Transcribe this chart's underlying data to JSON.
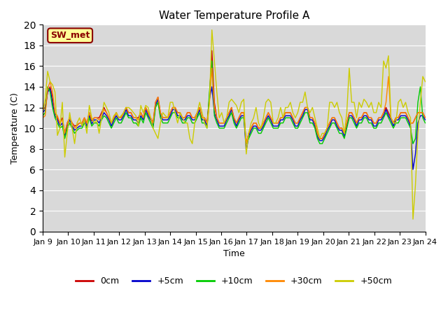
{
  "title": "Water Temperature Profile A",
  "xlabel": "Time",
  "ylabel": "Temperature (C)",
  "ylim": [
    0,
    20
  ],
  "bg_color": "#e0e0e0",
  "annotation_text": "SW_met",
  "annotation_fg": "#8b0000",
  "annotation_bg": "#ffff99",
  "legend_labels": [
    "0cm",
    "+5cm",
    "+10cm",
    "+30cm",
    "+50cm"
  ],
  "legend_colors": [
    "#cc0000",
    "#0000cc",
    "#00cc00",
    "#ff8800",
    "#cccc00"
  ],
  "x_tick_labels": [
    "Jan 9",
    "Jan 10",
    "Jan 11",
    "Jan 12",
    "Jan 13",
    "Jan 14",
    "Jan 15",
    "Jan 16",
    "Jan 17",
    "Jan 18",
    "Jan 19",
    "Jan 20",
    "Jan 21",
    "Jan 22",
    "Jan 23",
    "Jan 24"
  ],
  "series": {
    "0cm": [
      11.8,
      12.0,
      13.5,
      14.0,
      13.0,
      11.5,
      11.0,
      10.5,
      11.0,
      9.5,
      10.5,
      11.0,
      10.5,
      10.2,
      10.3,
      10.5,
      10.5,
      11.0,
      10.5,
      11.5,
      10.7,
      11.0,
      11.0,
      11.0,
      11.5,
      12.0,
      11.5,
      11.0,
      10.5,
      11.0,
      11.5,
      11.0,
      11.0,
      11.5,
      12.0,
      11.5,
      11.5,
      11.0,
      11.0,
      11.0,
      11.5,
      11.0,
      12.0,
      11.5,
      11.0,
      10.5,
      12.5,
      13.0,
      11.5,
      11.0,
      11.0,
      11.0,
      11.5,
      12.0,
      12.0,
      11.5,
      11.5,
      11.0,
      11.0,
      11.5,
      11.5,
      11.0,
      11.0,
      11.5,
      12.0,
      11.0,
      11.0,
      10.5,
      13.0,
      17.5,
      12.5,
      11.0,
      10.5,
      10.5,
      10.5,
      11.0,
      11.5,
      12.0,
      11.0,
      10.5,
      11.0,
      11.5,
      11.5,
      8.5,
      9.5,
      10.0,
      10.5,
      10.5,
      10.0,
      10.0,
      10.5,
      11.0,
      11.5,
      11.0,
      10.5,
      10.5,
      10.5,
      11.0,
      11.0,
      11.5,
      11.5,
      11.5,
      11.0,
      10.5,
      10.5,
      11.0,
      11.5,
      12.0,
      12.0,
      11.0,
      11.0,
      10.5,
      9.5,
      9.0,
      9.0,
      9.5,
      10.0,
      10.5,
      11.0,
      11.0,
      10.5,
      10.0,
      10.0,
      9.5,
      10.5,
      11.5,
      11.5,
      11.0,
      10.5,
      11.0,
      11.0,
      11.5,
      11.5,
      11.0,
      11.0,
      10.5,
      10.5,
      11.0,
      11.0,
      11.5,
      12.0,
      11.5,
      11.0,
      10.5,
      11.0,
      11.0,
      11.5,
      11.5,
      11.5,
      11.0,
      10.5,
      10.5,
      11.0,
      11.5,
      11.5,
      11.5,
      11.0
    ],
    "+5cm": [
      11.5,
      11.8,
      13.5,
      13.8,
      12.5,
      11.2,
      10.8,
      10.2,
      10.5,
      9.2,
      10.2,
      10.8,
      10.2,
      9.8,
      10.0,
      10.2,
      10.2,
      10.8,
      10.2,
      11.2,
      10.4,
      10.8,
      10.8,
      10.5,
      11.0,
      11.5,
      11.2,
      10.8,
      10.2,
      10.8,
      11.2,
      10.8,
      10.8,
      11.2,
      11.8,
      11.2,
      11.2,
      10.8,
      10.8,
      10.5,
      11.2,
      10.8,
      11.8,
      11.2,
      10.8,
      10.2,
      12.2,
      12.8,
      11.2,
      10.8,
      10.8,
      10.8,
      11.2,
      11.8,
      11.8,
      11.2,
      11.2,
      10.8,
      10.8,
      11.2,
      11.2,
      10.8,
      10.8,
      11.2,
      11.8,
      10.8,
      10.8,
      10.2,
      12.8,
      14.0,
      11.5,
      10.8,
      10.2,
      10.2,
      10.2,
      10.8,
      11.2,
      11.8,
      10.8,
      10.2,
      10.8,
      11.2,
      11.2,
      7.8,
      9.2,
      9.8,
      10.2,
      10.2,
      9.8,
      9.8,
      10.2,
      10.8,
      11.2,
      10.8,
      10.2,
      10.2,
      10.2,
      10.8,
      10.8,
      11.2,
      11.2,
      11.2,
      10.8,
      10.2,
      10.2,
      10.8,
      11.2,
      11.8,
      11.8,
      10.8,
      10.8,
      10.2,
      9.2,
      8.8,
      8.8,
      9.2,
      9.8,
      10.2,
      10.8,
      10.8,
      10.2,
      9.8,
      9.8,
      9.2,
      10.2,
      11.2,
      11.2,
      10.8,
      10.2,
      10.8,
      10.8,
      11.2,
      11.2,
      10.8,
      10.8,
      10.2,
      10.2,
      10.8,
      10.8,
      11.2,
      11.8,
      11.2,
      10.8,
      10.2,
      10.8,
      10.8,
      11.2,
      11.2,
      11.2,
      10.8,
      10.2,
      6.0,
      7.5,
      10.5,
      11.2,
      11.2,
      10.8
    ],
    "+10cm": [
      11.2,
      11.5,
      14.0,
      13.5,
      12.0,
      11.0,
      10.5,
      10.0,
      10.2,
      9.0,
      10.0,
      10.5,
      10.0,
      9.5,
      9.8,
      10.0,
      10.0,
      10.5,
      10.0,
      11.0,
      10.2,
      10.5,
      10.5,
      10.2,
      10.8,
      11.2,
      11.0,
      10.5,
      10.0,
      10.5,
      11.0,
      10.5,
      10.5,
      11.0,
      11.5,
      11.0,
      11.0,
      10.5,
      10.5,
      10.2,
      11.0,
      10.5,
      11.5,
      11.0,
      10.5,
      10.0,
      12.0,
      12.5,
      11.0,
      10.5,
      10.5,
      10.5,
      11.0,
      11.5,
      11.5,
      11.0,
      11.0,
      10.5,
      10.5,
      11.0,
      11.0,
      10.5,
      10.5,
      11.0,
      11.5,
      10.5,
      10.5,
      10.0,
      13.5,
      16.5,
      11.2,
      10.5,
      10.0,
      10.0,
      10.0,
      10.5,
      11.0,
      11.5,
      10.5,
      10.0,
      10.5,
      11.0,
      11.0,
      8.5,
      9.0,
      9.5,
      10.0,
      10.0,
      9.5,
      9.5,
      10.0,
      10.5,
      11.0,
      10.5,
      10.0,
      10.0,
      10.0,
      10.5,
      10.5,
      11.0,
      11.0,
      11.0,
      10.5,
      10.0,
      10.0,
      10.5,
      11.0,
      11.5,
      11.5,
      10.5,
      10.5,
      10.0,
      9.0,
      8.5,
      8.5,
      9.0,
      9.5,
      10.0,
      10.5,
      10.5,
      10.0,
      9.5,
      9.5,
      9.0,
      10.0,
      11.0,
      11.0,
      10.5,
      10.0,
      10.5,
      10.5,
      11.0,
      11.0,
      10.5,
      10.5,
      10.0,
      10.0,
      10.5,
      10.5,
      11.0,
      11.5,
      11.0,
      10.5,
      10.0,
      10.5,
      10.5,
      11.0,
      11.0,
      11.0,
      10.5,
      10.0,
      8.5,
      9.0,
      12.5,
      14.0,
      11.0,
      10.5
    ],
    "+30cm": [
      11.0,
      11.2,
      13.8,
      14.5,
      13.5,
      11.5,
      11.2,
      10.5,
      10.8,
      9.5,
      10.5,
      11.0,
      10.5,
      10.0,
      10.2,
      10.5,
      10.5,
      11.0,
      10.5,
      11.5,
      10.8,
      11.0,
      11.0,
      10.8,
      11.2,
      11.8,
      11.5,
      11.0,
      10.5,
      11.0,
      11.5,
      11.0,
      11.0,
      11.5,
      12.0,
      11.5,
      11.5,
      11.0,
      11.0,
      10.8,
      11.5,
      11.0,
      12.0,
      11.5,
      11.0,
      10.5,
      12.5,
      13.0,
      11.5,
      11.0,
      11.0,
      11.0,
      11.5,
      12.0,
      12.0,
      11.5,
      11.5,
      11.0,
      11.0,
      11.5,
      11.5,
      11.0,
      11.0,
      11.5,
      12.0,
      11.0,
      11.0,
      10.5,
      12.5,
      15.8,
      12.0,
      11.0,
      10.5,
      10.5,
      10.5,
      11.0,
      11.5,
      12.0,
      11.0,
      10.5,
      11.0,
      11.5,
      11.5,
      8.5,
      9.5,
      10.0,
      10.5,
      10.5,
      10.0,
      10.0,
      10.5,
      11.0,
      11.5,
      11.0,
      10.5,
      10.5,
      10.5,
      11.0,
      11.0,
      11.5,
      11.5,
      11.5,
      11.0,
      10.5,
      10.5,
      11.0,
      11.5,
      12.0,
      12.0,
      11.0,
      11.0,
      10.5,
      9.5,
      9.0,
      9.0,
      9.5,
      10.0,
      10.5,
      11.0,
      11.0,
      10.5,
      10.0,
      10.0,
      9.5,
      10.5,
      11.5,
      11.5,
      11.0,
      10.5,
      11.0,
      11.0,
      11.5,
      11.5,
      11.0,
      11.0,
      10.5,
      10.5,
      11.0,
      11.0,
      11.5,
      12.5,
      15.0,
      11.0,
      10.5,
      11.0,
      11.0,
      11.5,
      11.5,
      11.5,
      11.0,
      10.5,
      10.5,
      11.0,
      11.5,
      11.5,
      11.5,
      11.0
    ],
    "+50cm": [
      11.5,
      12.8,
      15.5,
      14.5,
      14.2,
      13.5,
      9.3,
      10.0,
      12.5,
      7.2,
      9.5,
      11.5,
      10.0,
      8.5,
      10.5,
      11.0,
      10.2,
      10.8,
      9.5,
      12.2,
      11.0,
      10.5,
      10.8,
      9.5,
      11.0,
      12.5,
      12.0,
      11.5,
      10.5,
      11.2,
      11.5,
      11.0,
      11.2,
      11.5,
      12.0,
      12.0,
      11.8,
      11.5,
      11.2,
      10.2,
      12.2,
      11.5,
      12.2,
      12.0,
      11.0,
      10.0,
      9.5,
      9.0,
      10.5,
      11.5,
      11.2,
      11.0,
      12.5,
      12.5,
      11.5,
      10.5,
      11.5,
      11.0,
      10.5,
      10.5,
      9.0,
      8.5,
      10.5,
      11.5,
      12.5,
      11.5,
      10.5,
      10.0,
      12.5,
      19.5,
      16.5,
      13.5,
      11.0,
      11.5,
      10.5,
      11.0,
      12.5,
      12.8,
      12.5,
      12.2,
      11.5,
      12.5,
      12.8,
      7.5,
      9.5,
      10.5,
      11.0,
      12.0,
      10.5,
      10.0,
      11.0,
      12.5,
      12.8,
      12.5,
      10.5,
      10.5,
      11.0,
      12.0,
      11.0,
      12.0,
      12.0,
      12.5,
      11.5,
      11.0,
      11.5,
      12.5,
      12.5,
      13.5,
      12.0,
      11.5,
      12.0,
      11.0,
      10.0,
      9.0,
      9.5,
      9.5,
      10.0,
      12.5,
      12.5,
      12.0,
      12.5,
      11.5,
      11.0,
      9.5,
      11.5,
      15.8,
      12.5,
      12.5,
      11.0,
      12.5,
      12.0,
      12.8,
      12.5,
      12.0,
      12.5,
      11.5,
      11.5,
      12.5,
      12.0,
      16.5,
      15.8,
      17.0,
      11.0,
      10.5,
      10.5,
      12.5,
      12.8,
      12.0,
      12.5,
      11.5,
      11.0,
      1.2,
      4.5,
      9.5,
      12.5,
      15.0,
      14.5
    ]
  }
}
